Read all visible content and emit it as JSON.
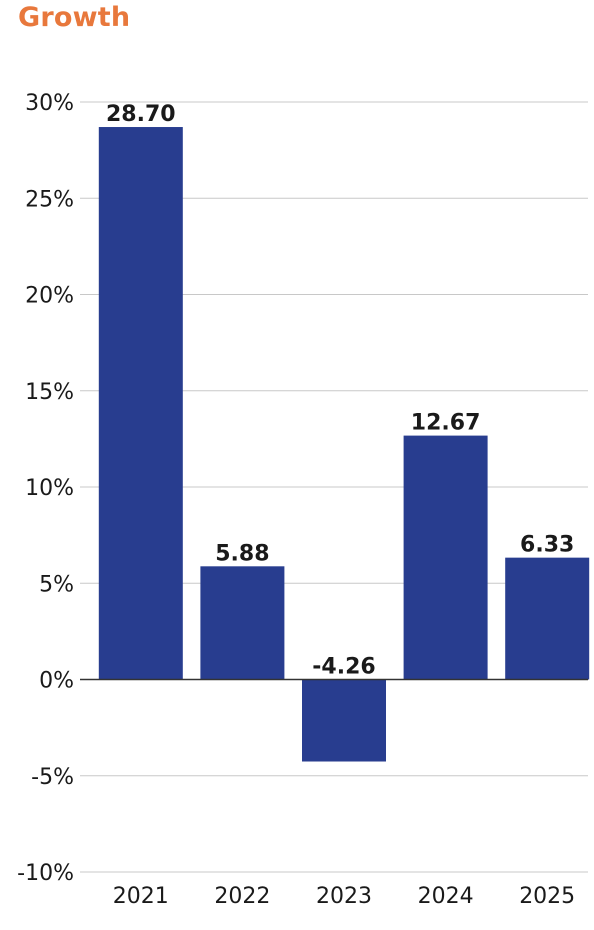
{
  "chart_data": {
    "type": "bar",
    "title": "Growth",
    "categories": [
      "2021",
      "2022",
      "2023",
      "2024",
      "2025"
    ],
    "values": [
      28.7,
      5.88,
      -4.26,
      12.67,
      6.33
    ],
    "data_labels": [
      "28.70",
      "5.88",
      "-4.26",
      "12.67",
      "6.33"
    ],
    "ylim": [
      -10,
      30
    ],
    "yticks": [
      30,
      25,
      20,
      15,
      10,
      5,
      0,
      -5,
      -10
    ],
    "ytick_labels": [
      "30%",
      "25%",
      "20%",
      "15%",
      "10%",
      "5%",
      "0%",
      "-5%",
      "-10%"
    ],
    "xlabel": "",
    "ylabel": "",
    "grid": true,
    "legend": false
  },
  "colors": {
    "title": "#e8783c",
    "bar": "#283d8f",
    "grid": "#c8c8c8",
    "zero_line": "#333333",
    "text": "#1a1a1a"
  }
}
